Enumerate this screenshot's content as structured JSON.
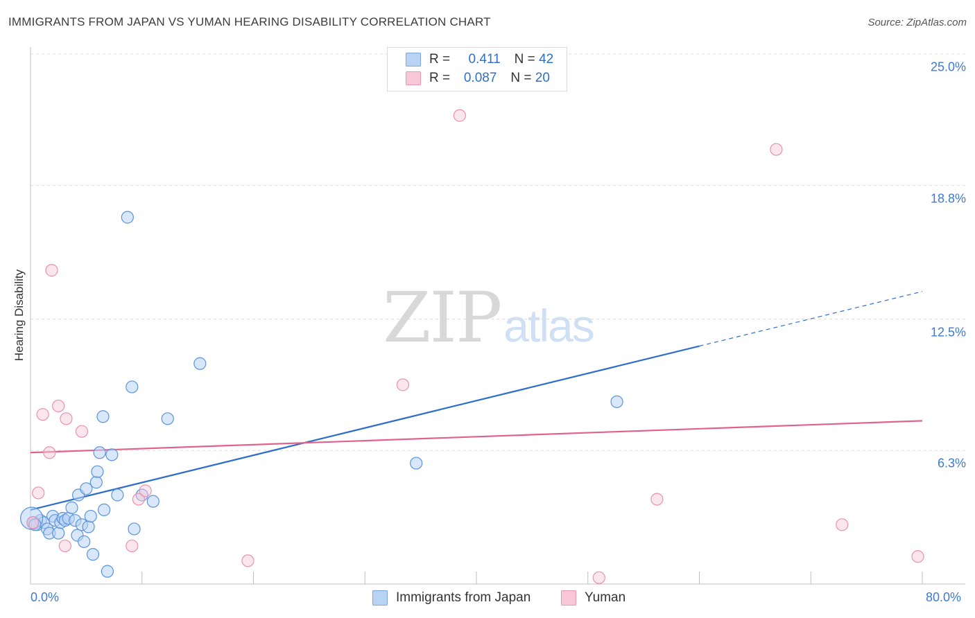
{
  "title": "IMMIGRANTS FROM JAPAN VS YUMAN HEARING DISABILITY CORRELATION CHART",
  "source": "Source: ZipAtlas.com",
  "watermark": {
    "zip": "ZIP",
    "atlas": "atlas"
  },
  "colors": {
    "blue": "#2d6fc9",
    "blue_fill": "#b9d3f5",
    "pink": "#e0638d",
    "pink_fill": "#f9c8d6",
    "grid": "#dcdcdc",
    "axis_text": "#3d7bd1"
  },
  "legend": {
    "rows": [
      {
        "r_label": "R =",
        "r_value": "0.411",
        "n_label": "N =",
        "n_value": "42"
      },
      {
        "r_label": "R =",
        "r_value": "0.087",
        "n_label": "N =",
        "n_value": "20"
      }
    ]
  },
  "bottom_legend": [
    "Immigrants from Japan",
    "Yuman"
  ],
  "chart_data": {
    "type": "scatter",
    "title": "IMMIGRANTS FROM JAPAN VS YUMAN HEARING DISABILITY CORRELATION CHART",
    "ylabel": "Hearing Disability",
    "xlabel": "",
    "xlim": [
      0,
      80
    ],
    "ylim": [
      0,
      25
    ],
    "x_tick_labels": [
      "0.0%",
      "80.0%"
    ],
    "y_ticks": [
      6.3,
      12.5,
      18.8,
      25.0
    ],
    "y_tick_labels": [
      "6.3%",
      "12.5%",
      "18.8%",
      "25.0%"
    ],
    "series": [
      {
        "name": "Immigrants from Japan",
        "r": 0.411,
        "n": 42,
        "points": [
          [
            0.3,
            2.9
          ],
          [
            0.6,
            2.8
          ],
          [
            0.9,
            3.0
          ],
          [
            1.2,
            2.9
          ],
          [
            1.5,
            2.6
          ],
          [
            1.7,
            2.4
          ],
          [
            2.0,
            3.2
          ],
          [
            2.2,
            3.0
          ],
          [
            2.5,
            2.4
          ],
          [
            2.7,
            2.9
          ],
          [
            2.9,
            3.1
          ],
          [
            3.1,
            3.0
          ],
          [
            3.4,
            3.1
          ],
          [
            3.7,
            3.6
          ],
          [
            4.0,
            3.0
          ],
          [
            4.2,
            2.3
          ],
          [
            4.3,
            4.2
          ],
          [
            4.6,
            2.8
          ],
          [
            4.8,
            2.0
          ],
          [
            5.0,
            4.5
          ],
          [
            5.2,
            2.7
          ],
          [
            5.4,
            3.2
          ],
          [
            5.6,
            1.4
          ],
          [
            5.9,
            4.8
          ],
          [
            6.0,
            5.3
          ],
          [
            6.2,
            6.2
          ],
          [
            6.5,
            7.9
          ],
          [
            6.6,
            3.5
          ],
          [
            6.9,
            0.6
          ],
          [
            7.3,
            6.1
          ],
          [
            7.8,
            4.2
          ],
          [
            8.7,
            17.3
          ],
          [
            9.1,
            9.3
          ],
          [
            9.3,
            2.6
          ],
          [
            10.0,
            4.2
          ],
          [
            11.0,
            3.9
          ],
          [
            12.3,
            7.8
          ],
          [
            15.2,
            10.4
          ],
          [
            34.6,
            5.7
          ],
          [
            52.6,
            8.6
          ],
          [
            0.1,
            3.1
          ],
          [
            0.4,
            2.8
          ]
        ],
        "trend": {
          "x0": 0,
          "y0": 3.5,
          "x1": 80,
          "y1": 13.8,
          "solid_to_x": 60
        }
      },
      {
        "name": "Yuman",
        "r": 0.087,
        "n": 20,
        "points": [
          [
            0.7,
            4.3
          ],
          [
            1.1,
            8.0
          ],
          [
            1.7,
            6.2
          ],
          [
            1.9,
            14.8
          ],
          [
            2.5,
            8.4
          ],
          [
            3.1,
            1.8
          ],
          [
            3.2,
            7.8
          ],
          [
            4.6,
            7.2
          ],
          [
            9.1,
            1.8
          ],
          [
            9.7,
            4.0
          ],
          [
            10.3,
            4.4
          ],
          [
            19.5,
            1.1
          ],
          [
            33.4,
            9.4
          ],
          [
            38.5,
            22.1
          ],
          [
            51.0,
            0.3
          ],
          [
            56.2,
            4.0
          ],
          [
            66.9,
            20.5
          ],
          [
            72.8,
            2.8
          ],
          [
            79.6,
            1.3
          ],
          [
            0.2,
            2.9
          ]
        ],
        "trend": {
          "x0": 0,
          "y0": 6.2,
          "x1": 80,
          "y1": 7.7,
          "solid_to_x": 80
        }
      }
    ]
  }
}
